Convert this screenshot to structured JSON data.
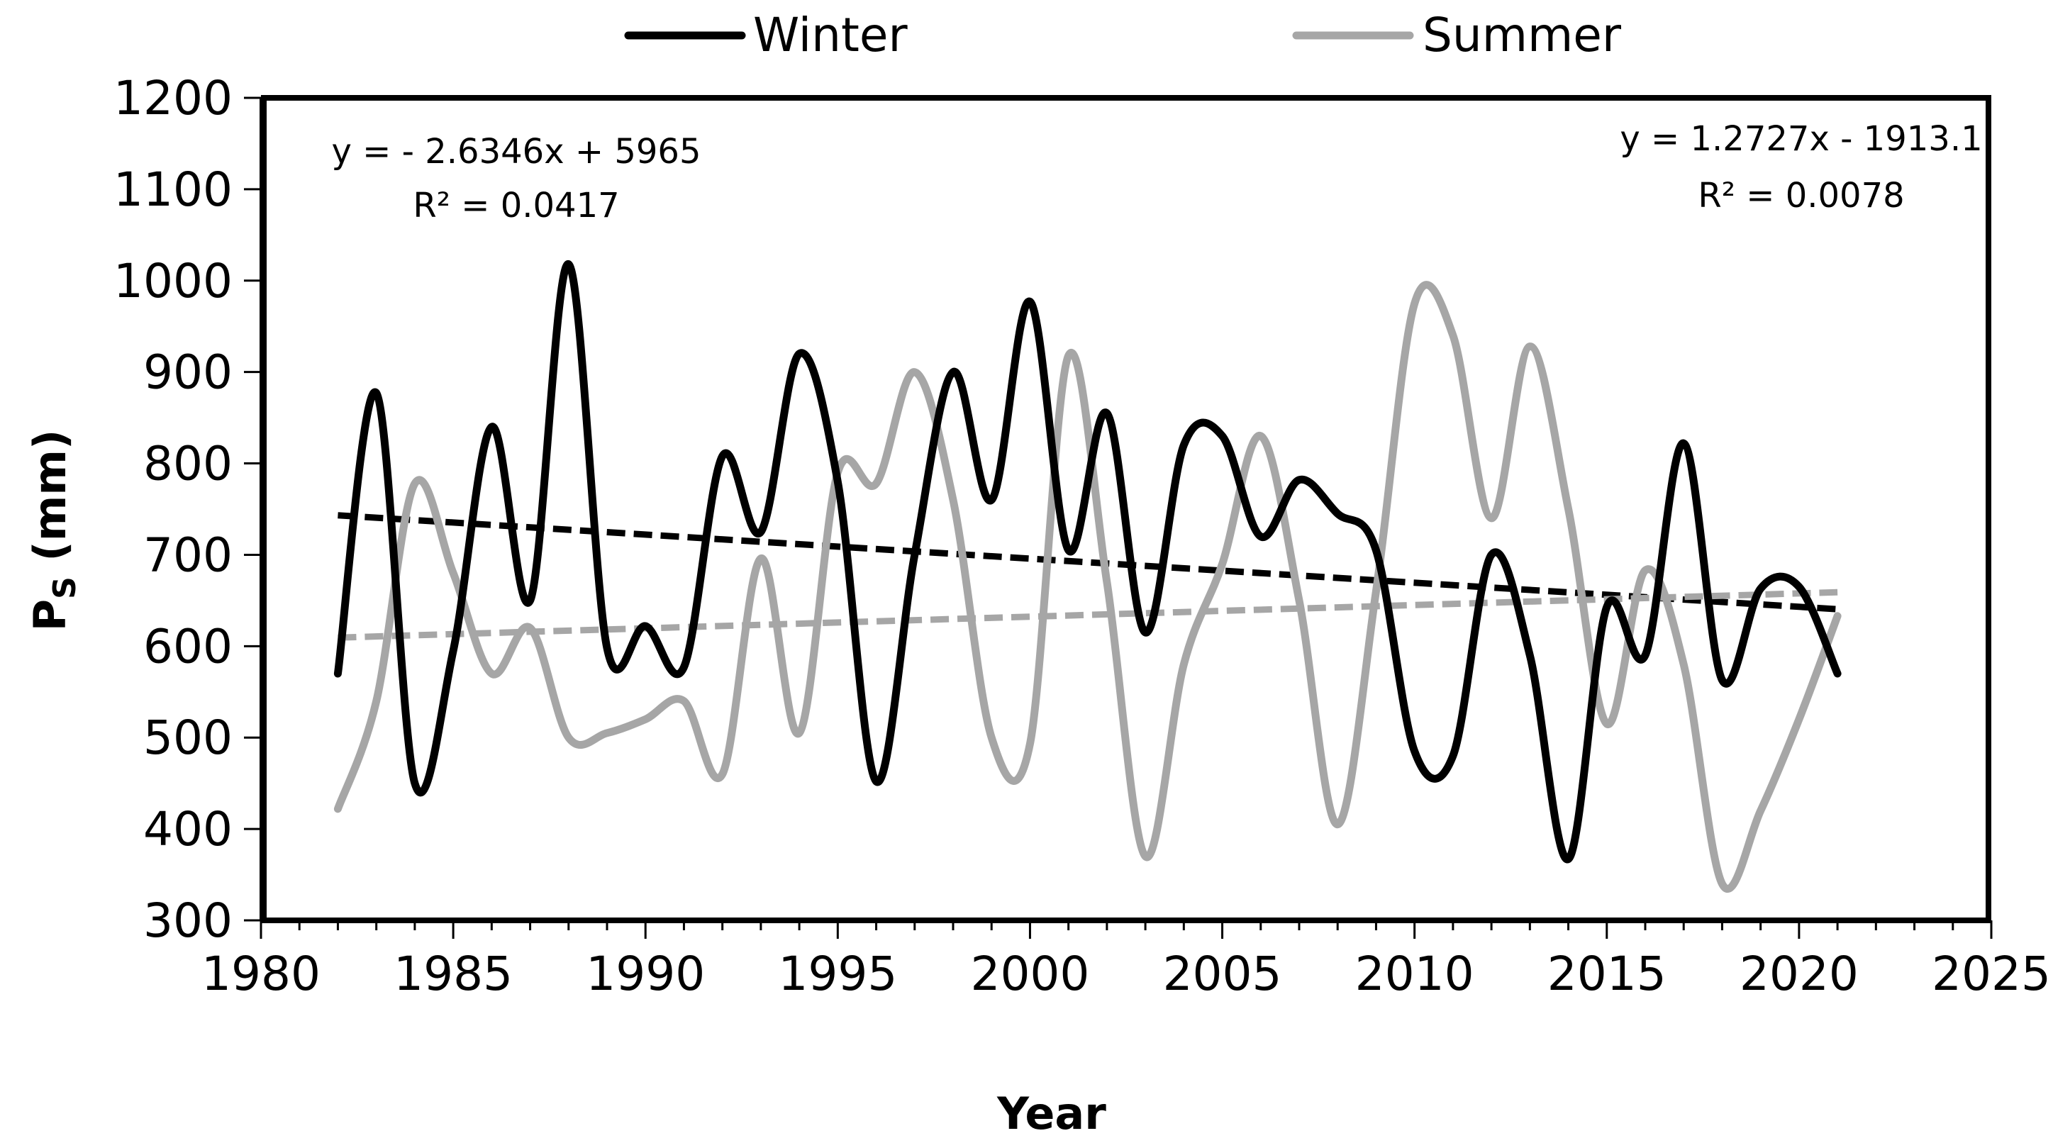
{
  "chart_data": {
    "type": "line",
    "title": "",
    "xlabel": "Year",
    "ylabel": "Ps (mm)",
    "ylabel_main": "P",
    "ylabel_sub": "S",
    "ylabel_unit": " (mm)",
    "xlim": [
      1980,
      2025
    ],
    "ylim": [
      300,
      1200
    ],
    "x_ticks": [
      1980,
      1985,
      1990,
      1995,
      2000,
      2005,
      2010,
      2015,
      2020,
      2025
    ],
    "y_ticks": [
      300,
      400,
      500,
      600,
      700,
      800,
      900,
      1000,
      1100,
      1200
    ],
    "x_minor_step": 1,
    "grid": false,
    "legend_position": "top-center",
    "x": [
      1982,
      1983,
      1984,
      1985,
      1986,
      1987,
      1988,
      1989,
      1990,
      1991,
      1992,
      1993,
      1994,
      1995,
      1996,
      1997,
      1998,
      1999,
      2000,
      2001,
      2002,
      2003,
      2004,
      2005,
      2006,
      2007,
      2008,
      2009,
      2010,
      2011,
      2012,
      2013,
      2014,
      2015,
      2016,
      2017,
      2018,
      2019,
      2020,
      2021
    ],
    "series": [
      {
        "name": "Winter",
        "color": "#000000",
        "values": [
          570,
          877,
          450,
          595,
          840,
          650,
          1018,
          598,
          622,
          577,
          808,
          725,
          920,
          780,
          452,
          700,
          900,
          760,
          977,
          705,
          855,
          615,
          820,
          830,
          720,
          782,
          745,
          705,
          485,
          480,
          700,
          590,
          367,
          643,
          590,
          822,
          563,
          663,
          665,
          570
        ]
      },
      {
        "name": "Summer",
        "color": "#a6a6a6",
        "values": [
          422,
          540,
          778,
          680,
          570,
          620,
          500,
          505,
          520,
          540,
          460,
          696,
          505,
          790,
          778,
          900,
          760,
          500,
          493,
          918,
          670,
          370,
          580,
          690,
          830,
          650,
          405,
          660,
          975,
          940,
          740,
          928,
          750,
          515,
          683,
          580,
          340,
          420,
          520,
          633
        ]
      }
    ],
    "trendlines": [
      {
        "series": "Winter",
        "color": "#000000",
        "slope": -2.6346,
        "intercept": 5965,
        "x_range": [
          1982,
          2021
        ],
        "equation": "y = - 2.6346x + 5965",
        "r2": "R² = 0.0417"
      },
      {
        "series": "Summer",
        "color": "#a6a6a6",
        "slope": 1.2727,
        "intercept": -1913.1,
        "x_range": [
          1982,
          2021
        ],
        "equation": "y = 1.2727x - 1913.1",
        "r2": "R² = 0.0078"
      }
    ]
  }
}
